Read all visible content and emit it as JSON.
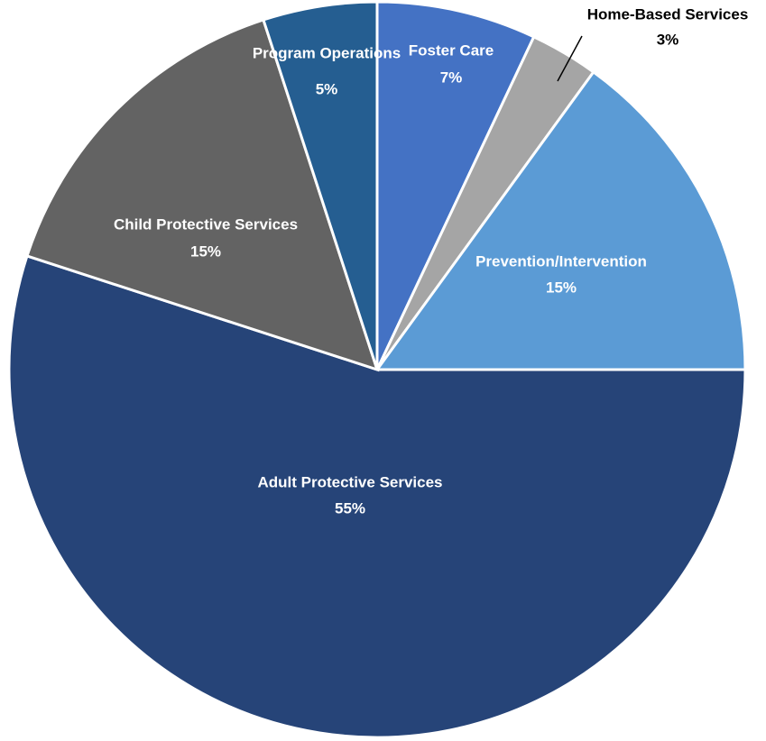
{
  "chart_data": {
    "type": "pie",
    "categories": [
      "Foster Care",
      "Home-Based Services",
      "Prevention/Intervention",
      "Adult Protective Services",
      "Child Protective Services",
      "Program Operations"
    ],
    "values": [
      7,
      3,
      15,
      55,
      15,
      5
    ],
    "value_labels": [
      "7%",
      "3%",
      "15%",
      "55%",
      "15%",
      "5%"
    ],
    "colors": [
      "#4472c4",
      "#a5a5a5",
      "#5b9bd5",
      "#264478",
      "#636363",
      "#255e91"
    ]
  }
}
